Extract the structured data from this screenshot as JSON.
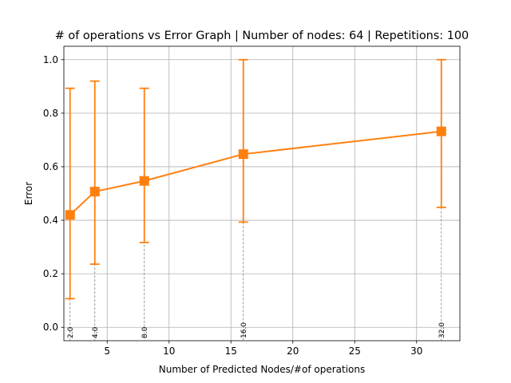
{
  "chart_data": {
    "type": "line",
    "title": "# of operations vs Error Graph | Number of nodes: 64 | Repetitions: 100",
    "xlabel": "Number of Predicted Nodes/#of operations",
    "ylabel": "Error",
    "xlim": [
      1.5,
      33.5
    ],
    "ylim": [
      -0.05,
      1.05
    ],
    "x_ticks": [
      5,
      10,
      15,
      20,
      25,
      30
    ],
    "x_tick_labels": [
      "5",
      "10",
      "15",
      "20",
      "25",
      "30"
    ],
    "y_ticks": [
      0.0,
      0.2,
      0.4,
      0.6,
      0.8,
      1.0
    ],
    "y_tick_labels": [
      "0.0",
      "0.2",
      "0.4",
      "0.6",
      "0.8",
      "1.0"
    ],
    "grid": true,
    "series": [
      {
        "color": "#ff7f0e",
        "marker": "square",
        "x": [
          2,
          4,
          8,
          16,
          32
        ],
        "y": [
          0.42,
          0.507,
          0.547,
          0.647,
          0.732
        ],
        "error_low": [
          0.107,
          0.236,
          0.317,
          0.393,
          0.448
        ],
        "error_high": [
          0.893,
          0.92,
          0.893,
          1.0,
          1.0
        ]
      }
    ],
    "point_labels": [
      "2.0",
      "4.0",
      "8.0",
      "16.0",
      "32.0"
    ]
  }
}
